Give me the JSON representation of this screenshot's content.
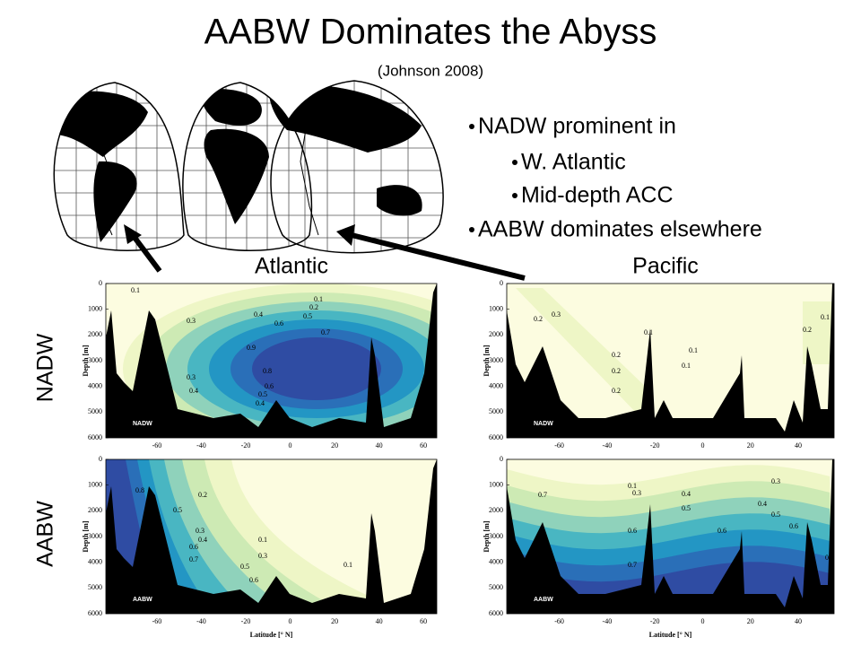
{
  "title": "AABW Dominates the Abyss",
  "subtitle": "(Johnson 2008)",
  "bullets": [
    {
      "text": "NADW prominent in",
      "subitems": [
        "W. Atlantic",
        "Mid-depth ACC"
      ]
    },
    {
      "text": "AABW dominates elsewhere"
    }
  ],
  "basin_labels": [
    "Atlantic",
    "Pacific"
  ],
  "row_labels": [
    "NADW",
    "AABW"
  ],
  "panels": [
    {
      "tag": "NADW",
      "ylabel": "Depth [m]",
      "ylim": [
        0,
        6000
      ],
      "yticks": [
        0,
        1000,
        2000,
        3000,
        4000,
        5000,
        6000
      ],
      "xlim": [
        -83,
        66
      ],
      "xticks": [
        -60,
        -40,
        -20,
        0,
        20,
        40,
        60
      ],
      "contour_labels": [
        "0.1",
        "0.1",
        "0.2",
        "0.3",
        "0.4",
        "0.5",
        "0.6",
        "0.7",
        "0.8",
        "0.9",
        "0.3",
        "0.4",
        "0.6",
        "0.5",
        "0.4"
      ]
    },
    {
      "tag": "NADW",
      "ylabel": "Depth [m]",
      "ylim": [
        0,
        6000
      ],
      "yticks": [
        0,
        1000,
        2000,
        3000,
        4000,
        5000,
        6000
      ],
      "xlim": [
        -82,
        55
      ],
      "xticks": [
        -60,
        -40,
        -20,
        0,
        20,
        40
      ],
      "contour_labels": [
        "0.2",
        "0.3",
        "0.2",
        "0.2",
        "0.2",
        "0.1",
        "0.1",
        "0.1",
        "0.2",
        "0.1"
      ]
    },
    {
      "tag": "AABW",
      "ylabel": "Depth [m]",
      "xlabel": "Latitude [° N]",
      "ylim": [
        0,
        6000
      ],
      "yticks": [
        0,
        1000,
        2000,
        3000,
        4000,
        5000,
        6000
      ],
      "xlim": [
        -83,
        66
      ],
      "xticks": [
        -60,
        -40,
        -20,
        0,
        20,
        40,
        60
      ],
      "contour_labels": [
        "0.8",
        "0.2",
        "0.5",
        "0.3",
        "0.4",
        "0.6",
        "0.7",
        "0.1",
        "0.3",
        "0.5",
        "0.6",
        "0.1"
      ]
    },
    {
      "tag": "AABW",
      "ylabel": "Depth [m]",
      "xlabel": "Latitude [° N]",
      "ylim": [
        0,
        6000
      ],
      "yticks": [
        0,
        1000,
        2000,
        3000,
        4000,
        5000,
        6000
      ],
      "xlim": [
        -82,
        55
      ],
      "xticks": [
        -60,
        -40,
        -20,
        0,
        20,
        40
      ],
      "contour_labels": [
        "0.1",
        "0.3",
        "0.4",
        "0.5",
        "0.6",
        "0.7",
        "0.6",
        "0.7",
        "0.4",
        "0.5",
        "0.6",
        "0.3",
        "0.1"
      ]
    }
  ]
}
